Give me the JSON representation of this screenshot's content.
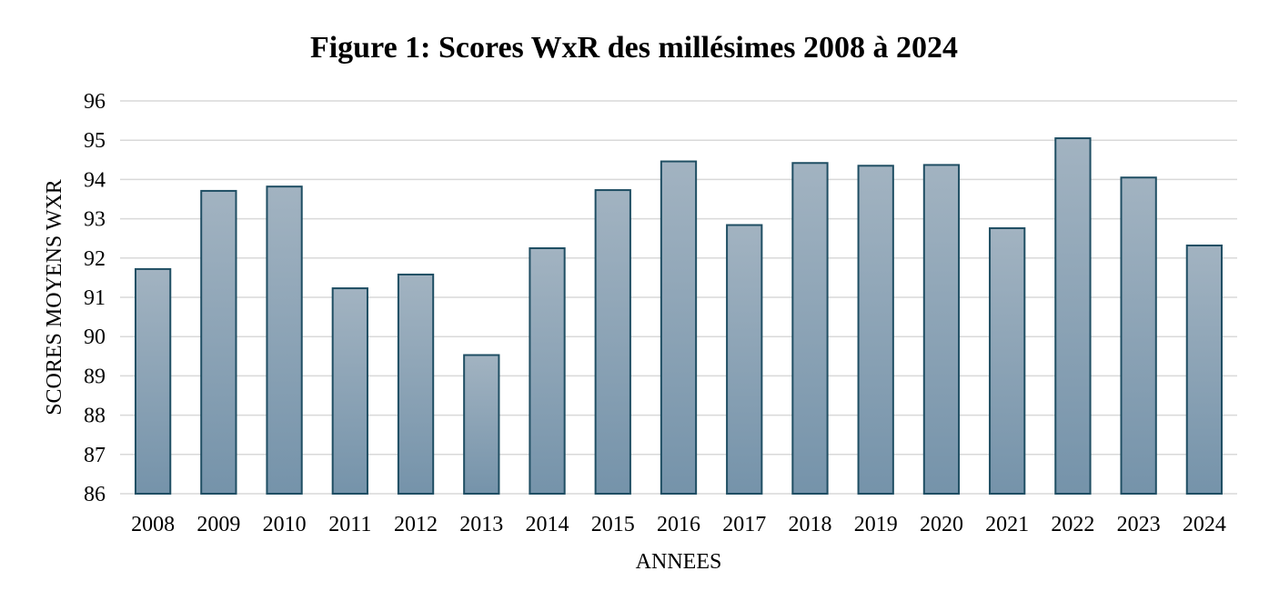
{
  "chart_data": {
    "type": "bar",
    "title": "Figure 1: Scores WxR des millésimes 2008 à 2024",
    "xlabel": "ANNEES",
    "ylabel": "SCORES MOYENS WXR",
    "categories": [
      "2008",
      "2009",
      "2010",
      "2011",
      "2012",
      "2013",
      "2014",
      "2015",
      "2016",
      "2017",
      "2018",
      "2019",
      "2020",
      "2021",
      "2022",
      "2023",
      "2024"
    ],
    "values": [
      91.72,
      93.71,
      93.82,
      91.23,
      91.58,
      89.53,
      92.25,
      93.73,
      94.46,
      92.84,
      94.42,
      94.35,
      94.37,
      92.76,
      95.05,
      94.05,
      92.32
    ],
    "ylim": [
      86,
      96
    ],
    "yticks": [
      "86",
      "87",
      "88",
      "89",
      "90",
      "91",
      "92",
      "93",
      "94",
      "95",
      "96"
    ],
    "grid": true,
    "legend": "none",
    "colors": {
      "bar_top": "#a2b3c1",
      "bar_bottom": "#7593aa",
      "bar_border": "#1f4e63",
      "gridline": "#d9d9d9"
    }
  }
}
